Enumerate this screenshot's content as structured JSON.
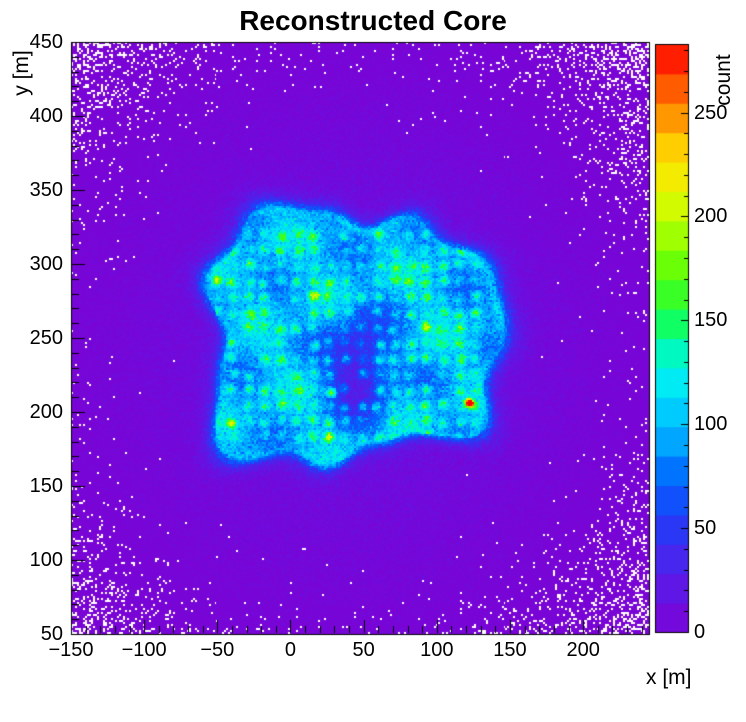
{
  "chart_data": {
    "type": "heatmap",
    "title": "Reconstructed Core",
    "xlabel": "x [m]",
    "ylabel": "y [m]",
    "colorbar_label": "count",
    "xlim": [
      -150,
      245
    ],
    "ylim": [
      50,
      450
    ],
    "zlim": [
      0,
      283
    ],
    "x_ticks": {
      "values": [
        -150,
        -100,
        -50,
        0,
        50,
        100,
        150,
        200
      ],
      "labels": [
        "−150",
        "−100",
        "−50",
        "0",
        "50",
        "100",
        "150",
        "200"
      ]
    },
    "y_ticks": {
      "values": [
        50,
        100,
        150,
        200,
        250,
        300,
        350,
        400,
        450
      ],
      "labels": [
        "50",
        "100",
        "150",
        "200",
        "250",
        "300",
        "350",
        "400",
        "450"
      ]
    },
    "z_ticks": {
      "values": [
        0,
        50,
        100,
        150,
        200,
        250
      ],
      "labels": [
        "0",
        "50",
        "100",
        "150",
        "200",
        "250"
      ]
    },
    "minor_tick_step": 10,
    "grid": false,
    "background_color": "#ffffff",
    "zero_bin_color": "#ffffff",
    "colorbar_segments": 20,
    "palette_stops": [
      [
        0.0,
        "#7c02d4"
      ],
      [
        0.06,
        "#6612e2"
      ],
      [
        0.13,
        "#4527ee"
      ],
      [
        0.18,
        "#2739f6"
      ],
      [
        0.26,
        "#0064ff"
      ],
      [
        0.32,
        "#00a2ff"
      ],
      [
        0.37,
        "#00c8ff"
      ],
      [
        0.43,
        "#00eef2"
      ],
      [
        0.49,
        "#00fbb1"
      ],
      [
        0.53,
        "#12ff59"
      ],
      [
        0.6,
        "#4fff0a"
      ],
      [
        0.67,
        "#9aff00"
      ],
      [
        0.71,
        "#c8ff00"
      ],
      [
        0.77,
        "#f2ef00"
      ],
      [
        0.82,
        "#ffd300"
      ],
      [
        0.88,
        "#ff9100"
      ],
      [
        0.94,
        "#ff4b00"
      ],
      [
        1.0,
        "#ff0000"
      ]
    ],
    "description": "2D histogram of reconstructed shower-core positions (~1.4 m bins). Diffuse violet background (~10-20 counts) fading outward with sparse empty white bins toward the edges; bright roughly-square detector-array footprint spanning x ~ -60..140 m, y ~ 170..330 m with a cyan rim, a staggered grid of cyan/green detector hotspots (~11 m pitch, ~120-180 counts), a low-count violet void near the array centre (~(47,231)), and one saturated red hot bin near (122,206) reaching the ~280-count maximum.",
    "model": {
      "bins": [
        290,
        296
      ],
      "background": {
        "center": [
          40,
          248
        ],
        "peak": 15,
        "sigma": 112,
        "floor": 0.25
      },
      "halo": {
        "amp": 12,
        "width": 0.45
      },
      "cluster": {
        "center": [
          40,
          252
        ],
        "half_size": [
          97,
          81
        ],
        "exponent": 4,
        "edge_softness": 9,
        "base": 85,
        "rim_amp": 30,
        "rim_u": 0.88,
        "rim_width": 0.1,
        "rotation_deg": 2,
        "mottle": [
          0.16,
          0.12
        ]
      },
      "void_region": {
        "center": [
          47,
          231
        ],
        "sigma": [
          15,
          24
        ],
        "depth": 85
      },
      "detector_grid": {
        "x_start": -50,
        "x_end": 130,
        "y_start": 183,
        "y_end": 324,
        "x_spacing": 11,
        "y_spacing": 10.5,
        "stagger": 0,
        "sigma": 2.3,
        "jitter": 3,
        "amp_min": 25,
        "amp_max": 70,
        "bright_fraction": 0.06,
        "bright_amp": 110,
        "missing_fraction": 0.12,
        "max_u": 0.92
      },
      "hotspot": {
        "x": 122,
        "y": 206,
        "amp": 250,
        "sigma": 2.0
      }
    }
  }
}
